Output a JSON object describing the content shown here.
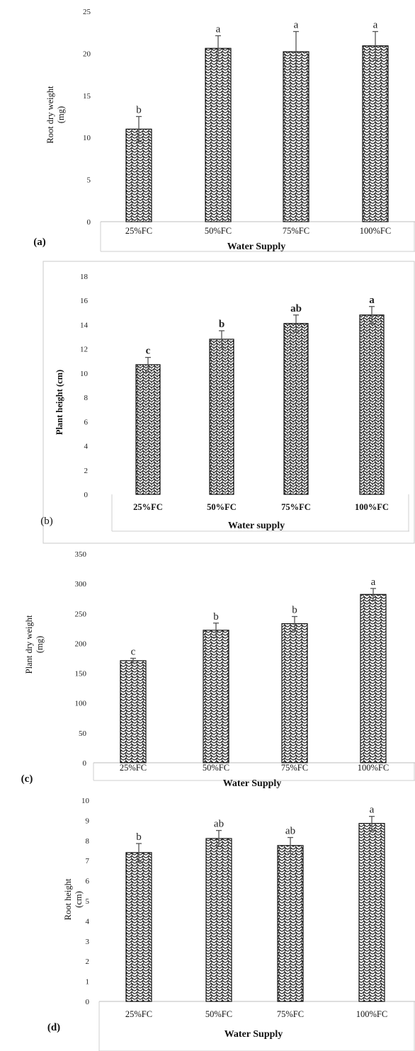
{
  "chart_data": [
    {
      "type": "bar",
      "panel_label": "(a)",
      "ylabel": [
        "Root dry weight",
        "(mg)"
      ],
      "xlabel": "Water Supply",
      "categories": [
        "25%FC",
        "50%FC",
        "75%FC",
        "100%FC"
      ],
      "values": [
        11.0,
        20.6,
        20.2,
        20.9
      ],
      "errors": [
        1.5,
        1.5,
        2.4,
        1.7
      ],
      "significance": [
        "b",
        "a",
        "a",
        "a"
      ],
      "ylim": [
        0,
        25
      ],
      "yticks": [
        0,
        5,
        10,
        15,
        20,
        25
      ],
      "grid": false,
      "pattern": "weave"
    },
    {
      "type": "bar",
      "panel_label": "(b)",
      "ylabel": [
        "Plant height (cm)"
      ],
      "xlabel": "Water supply",
      "categories": [
        "25%FC",
        "50%FC",
        "75%FC",
        "100%FC"
      ],
      "values": [
        10.7,
        12.8,
        14.1,
        14.8
      ],
      "errors": [
        0.6,
        0.7,
        0.7,
        0.7
      ],
      "significance": [
        "c",
        "b",
        "ab",
        "a"
      ],
      "ylim": [
        0,
        18
      ],
      "yticks": [
        0,
        2,
        4,
        6,
        8,
        10,
        12,
        14,
        16,
        18
      ],
      "grid": false,
      "pattern": "weave-dots",
      "framed": true
    },
    {
      "type": "bar",
      "panel_label": "(c)",
      "ylabel": [
        "Plant dry weight",
        "(mg)"
      ],
      "xlabel": "Water Supply",
      "categories": [
        "25%FC",
        "50%FC",
        "75%FC",
        "100%FC"
      ],
      "values": [
        171,
        222,
        233,
        282
      ],
      "errors": [
        4,
        12,
        12,
        10
      ],
      "significance": [
        "c",
        "b",
        "b",
        "a"
      ],
      "ylim": [
        0,
        350
      ],
      "yticks": [
        0,
        50,
        100,
        150,
        200,
        250,
        300,
        350
      ],
      "grid": false,
      "pattern": "weave"
    },
    {
      "type": "bar",
      "panel_label": "(d)",
      "ylabel": [
        "Root height",
        "(cm)"
      ],
      "xlabel": "Water Supply",
      "categories": [
        "25%FC",
        "50%FC",
        "75%FC",
        "100%FC"
      ],
      "values": [
        7.4,
        8.1,
        7.75,
        8.85
      ],
      "errors": [
        0.45,
        0.4,
        0.4,
        0.35
      ],
      "significance": [
        "b",
        "ab",
        "ab",
        "a"
      ],
      "ylim": [
        0,
        10
      ],
      "yticks": [
        0,
        1,
        2,
        3,
        4,
        5,
        6,
        7,
        8,
        9,
        10
      ],
      "grid": false,
      "pattern": "weave"
    }
  ]
}
